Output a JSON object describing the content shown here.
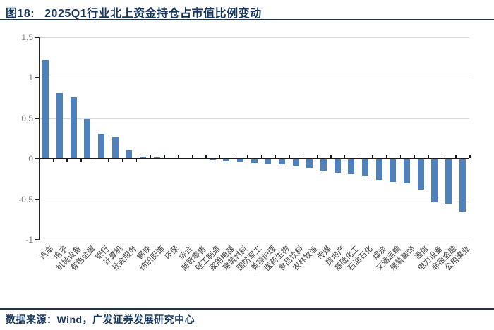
{
  "header": {
    "figure_label": "图18:",
    "title": "2025Q1行业北上资金持仓占市值比例变动"
  },
  "footer": {
    "source": "数据来源：Wind，广发证券发展研究中心"
  },
  "chart_data": {
    "type": "bar",
    "title": "2025Q1行业北上资金持仓占市值比例变动",
    "categories": [
      "汽车",
      "电子",
      "机械设备",
      "有色金属",
      "银行",
      "计算机",
      "社会服务",
      "钢铁",
      "纺织服饰",
      "环保",
      "综合",
      "商贸零售",
      "轻工制造",
      "家用电器",
      "建筑材料",
      "国防军工",
      "美容护理",
      "医药生物",
      "食品饮料",
      "农林牧渔",
      "传媒",
      "房地产",
      "基础化工",
      "石油石化",
      "煤炭",
      "交通运输",
      "建筑装饰",
      "通信",
      "电力设备",
      "非银金融",
      "公用事业"
    ],
    "values": [
      1.22,
      0.81,
      0.76,
      0.49,
      0.31,
      0.27,
      0.11,
      0.03,
      0.02,
      0.01,
      0.0,
      -0.01,
      -0.02,
      -0.03,
      -0.04,
      -0.05,
      -0.06,
      -0.07,
      -0.09,
      -0.11,
      -0.15,
      -0.17,
      -0.19,
      -0.21,
      -0.26,
      -0.29,
      -0.3,
      -0.38,
      -0.54,
      -0.56,
      -0.65
    ],
    "xlabel": "",
    "ylabel": "",
    "ylim": [
      -1,
      1.5
    ],
    "yticks": [
      1.5,
      1,
      0.5,
      0,
      -0.5,
      -1
    ],
    "ytick_labels": [
      "1.5",
      "1",
      "0.5",
      "0",
      "-0.5",
      "-1"
    ],
    "grid": true,
    "legend": false,
    "bar_color": "#4F81BD",
    "gridline_color": "#D9D9D9",
    "axis_color": "#1a1a1a",
    "tick_label_color": "#7F7F7F",
    "category_label_color": "#3F3F3F"
  },
  "theme": {
    "title_color": "#17365D",
    "rule_color": "#1F3349"
  }
}
